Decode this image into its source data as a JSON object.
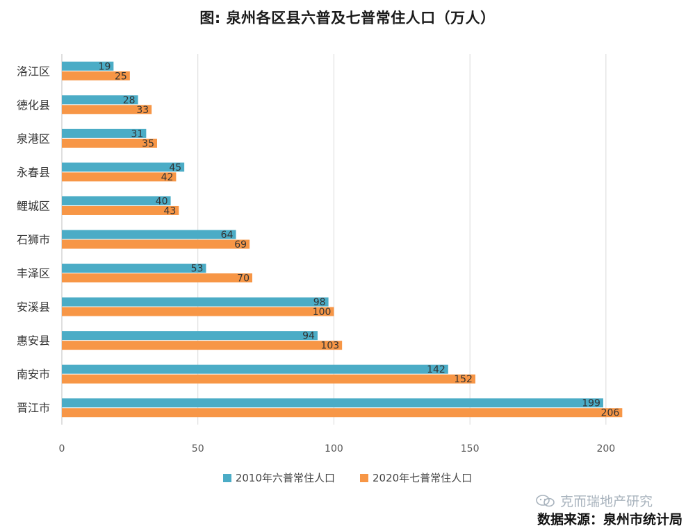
{
  "chart_data": {
    "type": "bar",
    "orientation": "horizontal",
    "title": "图: 泉州各区县六普及七普常住人口（万人）",
    "categories": [
      "洛江区",
      "德化县",
      "泉港区",
      "永春县",
      "鲤城区",
      "石狮市",
      "丰泽区",
      "安溪县",
      "惠安县",
      "南安市",
      "晋江市"
    ],
    "series": [
      {
        "name": "2010年六普常住人口",
        "color": "#4bacc6",
        "values": [
          19,
          28,
          31,
          45,
          40,
          64,
          53,
          98,
          94,
          142,
          199
        ]
      },
      {
        "name": "2020年七普常住人口",
        "color": "#f79646",
        "values": [
          25,
          33,
          35,
          42,
          43,
          69,
          70,
          100,
          103,
          152,
          206
        ]
      }
    ],
    "xlim": [
      0,
      210
    ],
    "xticks": [
      0,
      50,
      100,
      150,
      200
    ],
    "grid": true,
    "legend_position": "bottom"
  },
  "watermark": {
    "text": "克而瑞地产研究",
    "icon": "wechat-icon"
  },
  "source_note": "数据来源：泉州市统计局"
}
